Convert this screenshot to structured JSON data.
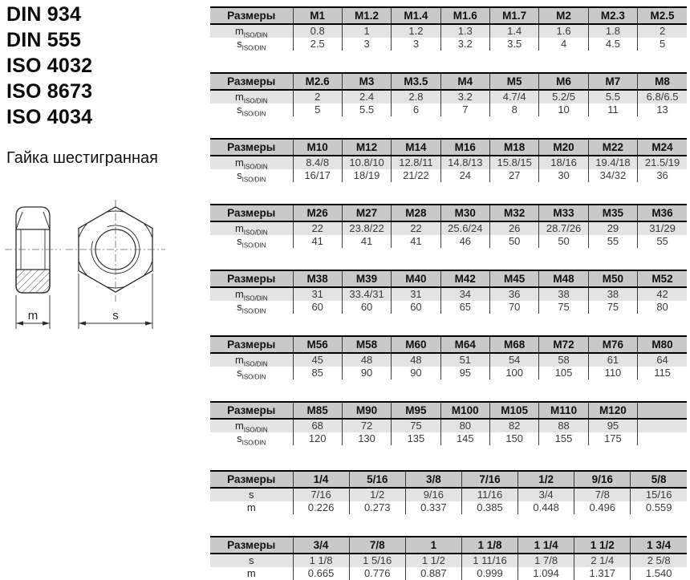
{
  "header": {
    "standards": [
      "DIN 934",
      "DIN 555",
      "ISO 4032",
      "ISO 8673",
      "ISO 4034"
    ],
    "product_name": "Гайка шестигранная"
  },
  "drawing": {
    "dim_m_label": "m",
    "dim_s_label": "s"
  },
  "colors": {
    "header_bg": "#c9c9c9",
    "alt_row_bg": "#e3e3e3",
    "table_border": "#000000",
    "line_color": "#2b2b2b"
  },
  "tables": [
    {
      "header_label": "Размеры",
      "columns": [
        "M1",
        "M1.2",
        "M1.4",
        "M1.6",
        "M1.7",
        "M2",
        "M2.3",
        "M2.5"
      ],
      "rows": [
        {
          "label": "m",
          "sub": "ISO/DIN",
          "values": [
            "0.8",
            "1",
            "1.2",
            "1.3",
            "1.4",
            "1.6",
            "1.8",
            "2"
          ]
        },
        {
          "label": "s",
          "sub": "ISO/DIN",
          "values": [
            "2.5",
            "3",
            "3",
            "3.2",
            "3.5",
            "4",
            "4.5",
            "5"
          ]
        }
      ]
    },
    {
      "header_label": "Размеры",
      "columns": [
        "M2.6",
        "M3",
        "M3.5",
        "M4",
        "M5",
        "M6",
        "M7",
        "M8"
      ],
      "rows": [
        {
          "label": "m",
          "sub": "ISO/DIN",
          "values": [
            "2",
            "2.4",
            "2.8",
            "3.2",
            "4.7/4",
            "5.2/5",
            "5.5",
            "6.8/6.5"
          ]
        },
        {
          "label": "s",
          "sub": "ISO/DIN",
          "values": [
            "5",
            "5.5",
            "6",
            "7",
            "8",
            "10",
            "11",
            "13"
          ]
        }
      ]
    },
    {
      "header_label": "Размеры",
      "columns": [
        "M10",
        "M12",
        "M14",
        "M16",
        "M18",
        "M20",
        "M22",
        "M24"
      ],
      "rows": [
        {
          "label": "m",
          "sub": "ISO/DIN",
          "values": [
            "8.4/8",
            "10.8/10",
            "12.8/11",
            "14.8/13",
            "15.8/15",
            "18/16",
            "19.4/18",
            "21.5/19"
          ]
        },
        {
          "label": "s",
          "sub": "ISO/DIN",
          "values": [
            "16/17",
            "18/19",
            "21/22",
            "24",
            "27",
            "30",
            "34/32",
            "36"
          ]
        }
      ]
    },
    {
      "header_label": "Размеры",
      "columns": [
        "M26",
        "M27",
        "M28",
        "M30",
        "M32",
        "M33",
        "M35",
        "M36"
      ],
      "rows": [
        {
          "label": "m",
          "sub": "ISO/DIN",
          "values": [
            "22",
            "23.8/22",
            "22",
            "25.6/24",
            "26",
            "28.7/26",
            "29",
            "31/29"
          ]
        },
        {
          "label": "s",
          "sub": "ISO/DIN",
          "values": [
            "41",
            "41",
            "41",
            "46",
            "50",
            "50",
            "55",
            "55"
          ]
        }
      ]
    },
    {
      "header_label": "Размеры",
      "columns": [
        "M38",
        "M39",
        "M40",
        "M42",
        "M45",
        "M48",
        "M50",
        "M52"
      ],
      "rows": [
        {
          "label": "m",
          "sub": "ISO/DIN",
          "values": [
            "31",
            "33.4/31",
            "31",
            "34",
            "36",
            "38",
            "38",
            "42"
          ]
        },
        {
          "label": "s",
          "sub": "ISO/DIN",
          "values": [
            "60",
            "60",
            "60",
            "65",
            "70",
            "75",
            "75",
            "80"
          ]
        }
      ]
    },
    {
      "header_label": "Размеры",
      "columns": [
        "M56",
        "M58",
        "M60",
        "M64",
        "M68",
        "M72",
        "M76",
        "M80"
      ],
      "rows": [
        {
          "label": "m",
          "sub": "ISO/DIN",
          "values": [
            "45",
            "48",
            "48",
            "51",
            "54",
            "58",
            "61",
            "64"
          ]
        },
        {
          "label": "s",
          "sub": "ISO/DIN",
          "values": [
            "85",
            "90",
            "90",
            "95",
            "100",
            "105",
            "110",
            "115"
          ]
        }
      ]
    },
    {
      "header_label": "Размеры",
      "columns": [
        "M85",
        "M90",
        "M95",
        "M100",
        "M105",
        "M110",
        "M120",
        ""
      ],
      "rows": [
        {
          "label": "m",
          "sub": "ISO/DIN",
          "values": [
            "68",
            "72",
            "75",
            "80",
            "82",
            "88",
            "95",
            ""
          ]
        },
        {
          "label": "s",
          "sub": "ISO/DIN",
          "values": [
            "120",
            "130",
            "135",
            "145",
            "150",
            "155",
            "175",
            ""
          ]
        }
      ]
    },
    {
      "header_label": "Размеры",
      "columns": [
        "1/4",
        "5/16",
        "3/8",
        "7/16",
        "1/2",
        "9/16",
        "5/8"
      ],
      "rows": [
        {
          "label": "s",
          "sub": "",
          "values": [
            "7/16",
            "1/2",
            "9/16",
            "11/16",
            "3/4",
            "7/8",
            "15/16"
          ]
        },
        {
          "label": "m",
          "sub": "",
          "values": [
            "0.226",
            "0.273",
            "0.337",
            "0.385",
            "0.448",
            "0.496",
            "0.559"
          ]
        }
      ]
    },
    {
      "header_label": "Размеры",
      "columns": [
        "3/4",
        "7/8",
        "1",
        "1 1/8",
        "1 1/4",
        "1 1/2",
        "1 3/4"
      ],
      "rows": [
        {
          "label": "s",
          "sub": "",
          "values": [
            "1 1/8",
            "1 5/16",
            "1 1/2",
            "1 11/16",
            "1 7/8",
            "2 1/4",
            "2 5/8"
          ]
        },
        {
          "label": "m",
          "sub": "",
          "values": [
            "0.665",
            "0.776",
            "0.887",
            "0.999",
            "1.094",
            "1.317",
            "1.540"
          ]
        }
      ]
    }
  ]
}
